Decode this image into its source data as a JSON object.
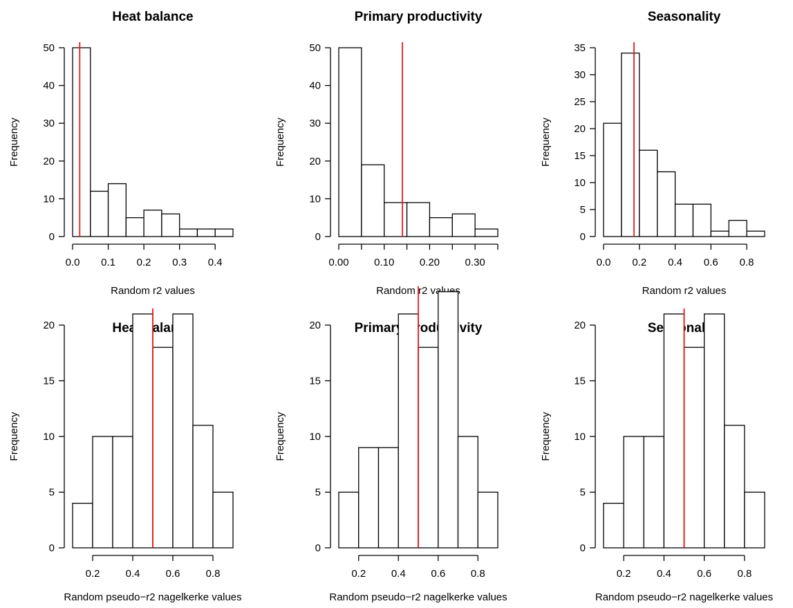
{
  "chart_data": [
    {
      "type": "bar",
      "title": "Heat balance",
      "xlabel": "Random r2 values",
      "ylabel": "Frequency",
      "bin_edges": [
        0.0,
        0.05,
        0.1,
        0.15,
        0.2,
        0.25,
        0.3,
        0.35,
        0.4,
        0.45
      ],
      "values": [
        50,
        12,
        14,
        5,
        7,
        6,
        2,
        2,
        2
      ],
      "xticks": [
        0.0,
        0.1,
        0.2,
        0.3,
        0.4
      ],
      "xtick_labels": [
        "0.0",
        "0.1",
        "0.2",
        "0.3",
        "0.4"
      ],
      "yticks": [
        0,
        10,
        20,
        30,
        40,
        50
      ],
      "ytick_labels": [
        "0",
        "10",
        "20",
        "30",
        "40",
        "50"
      ],
      "xlim": [
        0.0,
        0.45
      ],
      "ylim": [
        0,
        50
      ],
      "observed_line": 0.02,
      "line_color": "#e8191b"
    },
    {
      "type": "bar",
      "title": "Primary productivity",
      "xlabel": "Random r2 values",
      "ylabel": "Frequency",
      "bin_edges": [
        0.0,
        0.05,
        0.1,
        0.15,
        0.2,
        0.25,
        0.3,
        0.35
      ],
      "values": [
        50,
        19,
        9,
        9,
        5,
        6,
        2
      ],
      "xticks": [
        0.0,
        0.05,
        0.1,
        0.15,
        0.2,
        0.25,
        0.3,
        0.35
      ],
      "xtick_labels": [
        "0.00",
        "",
        "0.10",
        "",
        "0.20",
        "",
        "0.30",
        ""
      ],
      "yticks": [
        0,
        10,
        20,
        30,
        40,
        50
      ],
      "ytick_labels": [
        "0",
        "10",
        "20",
        "30",
        "40",
        "50"
      ],
      "xlim": [
        0.0,
        0.35
      ],
      "ylim": [
        0,
        50
      ],
      "observed_line": 0.14,
      "line_color": "#e8191b"
    },
    {
      "type": "bar",
      "title": "Seasonality",
      "xlabel": "Random r2 values",
      "ylabel": "Frequency",
      "bin_edges": [
        0.0,
        0.1,
        0.2,
        0.3,
        0.4,
        0.5,
        0.6,
        0.7,
        0.8,
        0.9
      ],
      "values": [
        21,
        34,
        16,
        12,
        6,
        6,
        1,
        3,
        1
      ],
      "xticks": [
        0.0,
        0.2,
        0.4,
        0.6,
        0.8
      ],
      "xtick_labels": [
        "0.0",
        "0.2",
        "0.4",
        "0.6",
        "0.8"
      ],
      "yticks": [
        0,
        5,
        10,
        15,
        20,
        25,
        30,
        35
      ],
      "ytick_labels": [
        "0",
        "5",
        "10",
        "15",
        "20",
        "25",
        "30",
        "35"
      ],
      "xlim": [
        0.0,
        0.9
      ],
      "ylim": [
        0,
        35
      ],
      "observed_line": 0.17,
      "line_color": "#e8191b"
    },
    {
      "type": "bar",
      "title": "Heat balance",
      "xlabel": "Random pseudo−r2 nagelkerke values",
      "ylabel": "Frequency",
      "bin_edges": [
        0.1,
        0.2,
        0.3,
        0.4,
        0.5,
        0.6,
        0.7,
        0.8,
        0.9
      ],
      "values": [
        4,
        10,
        10,
        21,
        18,
        21,
        11,
        5
      ],
      "xticks": [
        0.2,
        0.4,
        0.6,
        0.8
      ],
      "xtick_labels": [
        "0.2",
        "0.4",
        "0.6",
        "0.8"
      ],
      "yticks": [
        0,
        5,
        10,
        15,
        20
      ],
      "ytick_labels": [
        "0",
        "5",
        "10",
        "15",
        "20"
      ],
      "xlim": [
        0.1,
        0.9
      ],
      "ylim": [
        0,
        21
      ],
      "observed_line": 0.5,
      "line_color": "#e8191b"
    },
    {
      "type": "bar",
      "title": "Primary productivity",
      "xlabel": "Random pseudo−r2 nagelkerke values",
      "ylabel": "Frequency",
      "bin_edges": [
        0.1,
        0.2,
        0.3,
        0.4,
        0.5,
        0.6,
        0.7,
        0.8,
        0.9
      ],
      "values": [
        5,
        9,
        9,
        21,
        18,
        23,
        10,
        5
      ],
      "xticks": [
        0.2,
        0.4,
        0.6,
        0.8
      ],
      "xtick_labels": [
        "0.2",
        "0.4",
        "0.6",
        "0.8"
      ],
      "yticks": [
        0,
        5,
        10,
        15,
        20
      ],
      "ytick_labels": [
        "0",
        "5",
        "10",
        "15",
        "20"
      ],
      "xlim": [
        0.1,
        0.9
      ],
      "ylim": [
        0,
        23
      ],
      "observed_line": 0.5,
      "line_color": "#e8191b"
    },
    {
      "type": "bar",
      "title": "Seasonality",
      "xlabel": "Random pseudo−r2 nagelkerke values",
      "ylabel": "Frequency",
      "bin_edges": [
        0.1,
        0.2,
        0.3,
        0.4,
        0.5,
        0.6,
        0.7,
        0.8,
        0.9
      ],
      "values": [
        4,
        10,
        10,
        21,
        18,
        21,
        11,
        5
      ],
      "xticks": [
        0.2,
        0.4,
        0.6,
        0.8
      ],
      "xtick_labels": [
        "0.2",
        "0.4",
        "0.6",
        "0.8"
      ],
      "yticks": [
        0,
        5,
        10,
        15,
        20
      ],
      "ytick_labels": [
        "0",
        "5",
        "10",
        "15",
        "20"
      ],
      "xlim": [
        0.1,
        0.9
      ],
      "ylim": [
        0,
        21
      ],
      "observed_line": 0.5,
      "line_color": "#e8191b"
    }
  ]
}
